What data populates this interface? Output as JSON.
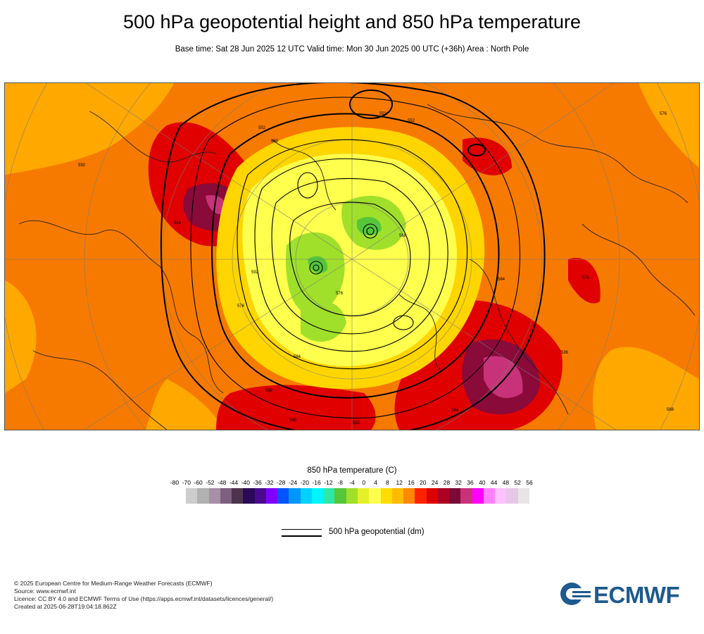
{
  "header": {
    "title": "500 hPa geopotential height and 850 hPa temperature",
    "subtitle": "Base time: Sat 28 Jun 2025 12 UTC Valid time: Mon 30 Jun 2025 00 UTC (+36h) Area : North Pole"
  },
  "map": {
    "contour_labels": [
      "552",
      "552",
      "552",
      "560",
      "568",
      "576",
      "584",
      "592",
      "576",
      "568",
      "560",
      "552",
      "544",
      "536",
      "576",
      "584",
      "592",
      "584",
      "576",
      "568"
    ]
  },
  "legend": {
    "title": "850 hPa temperature (C)",
    "ticks": [
      "-80",
      "-70",
      "-60",
      "-52",
      "-48",
      "-44",
      "-40",
      "-36",
      "-32",
      "-28",
      "-24",
      "-20",
      "-16",
      "-12",
      "-8",
      "-4",
      "0",
      "4",
      "8",
      "12",
      "16",
      "20",
      "24",
      "28",
      "32",
      "36",
      "40",
      "44",
      "48",
      "52",
      "56"
    ],
    "colors": [
      "#e6e6e6",
      "#cdcdcd",
      "#b1b1b1",
      "#a88fa8",
      "#7e5f7e",
      "#4d334d",
      "#2b0a59",
      "#4a0a8f",
      "#7f00ff",
      "#0055ff",
      "#0096ff",
      "#00d2ff",
      "#00f5ff",
      "#2ee8a8",
      "#55c63a",
      "#a0e02a",
      "#e6f02a",
      "#ffff4d",
      "#ffdc00",
      "#ffbb00",
      "#ff8800",
      "#ff2200",
      "#dd0000",
      "#aa0022",
      "#7a0a3a",
      "#c83278",
      "#ff00ff",
      "#ff80ff",
      "#ffc0ff",
      "#e6c8e6",
      "#e6e6e6"
    ],
    "line_label": "500 hPa geopotential (dm)"
  },
  "footer": {
    "lines": [
      "© 2025 European Centre for Medium-Range Weather Forecasts (ECMWF)",
      "Source: www.ecmwf.int",
      "Licence: CC BY 4.0 and ECMWF Terms of Use (https://apps.ecmwf.int/datasets/licences/general/)",
      "Created at 2025-06-28T19:04:18.862Z"
    ]
  },
  "logo": {
    "text": "ECMWF"
  }
}
